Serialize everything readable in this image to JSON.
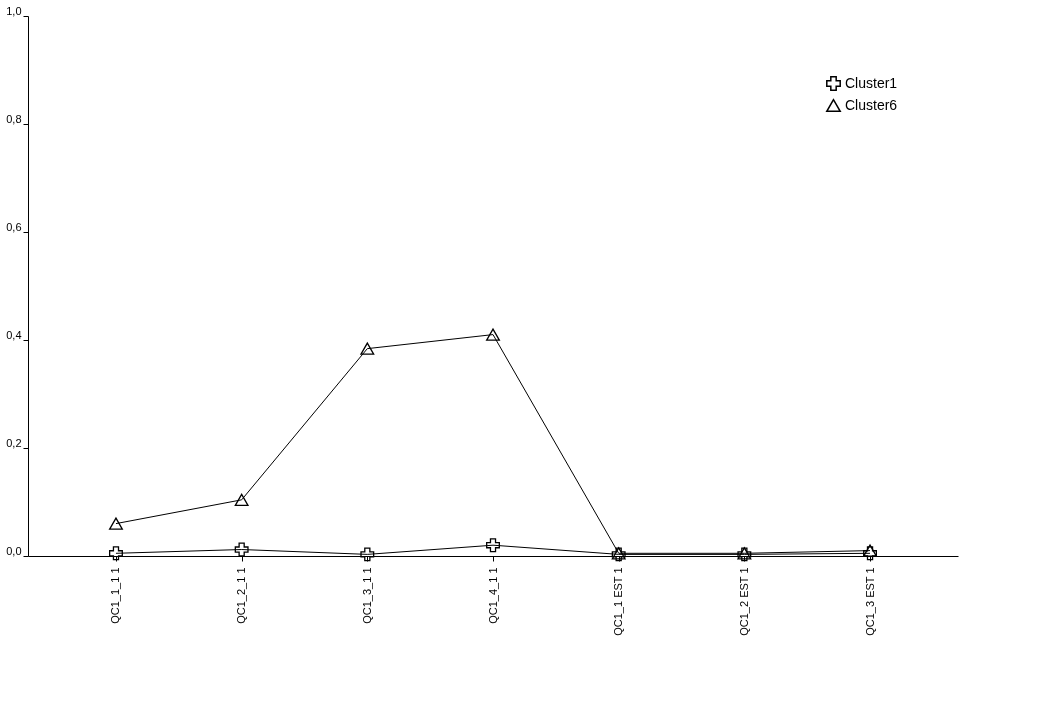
{
  "chart_data": {
    "type": "line",
    "categories": [
      "QC1_1_1 1",
      "QC1_2_1 1",
      "QC1_3_1 1",
      "QC1_4_1 1",
      "QC1_1 EST 1",
      "QC1_2 EST 1",
      "QC1_3 EST 1"
    ],
    "series": [
      {
        "name": "Cluster1",
        "color": "#000000",
        "marker": "cross",
        "values": [
          0.005,
          0.012,
          0.003,
          0.02,
          0.003,
          0.003,
          0.005
        ]
      },
      {
        "name": "Cluster6",
        "color": "#000000",
        "marker": "triangle",
        "values": [
          0.06,
          0.104,
          0.384,
          0.41,
          0.005,
          0.005,
          0.01
        ]
      }
    ],
    "ylim": [
      0,
      1
    ],
    "yticks": [
      {
        "value": 0,
        "label": "0,0"
      },
      {
        "value": 0.2,
        "label": "0,2"
      },
      {
        "value": 0.4,
        "label": "0,4"
      },
      {
        "value": 0.6,
        "label": "0,6"
      },
      {
        "value": 0.8,
        "label": "0,8"
      },
      {
        "value": 1,
        "label": "1,0"
      }
    ],
    "grid": false,
    "legend": "top right",
    "line_style": "solid"
  }
}
